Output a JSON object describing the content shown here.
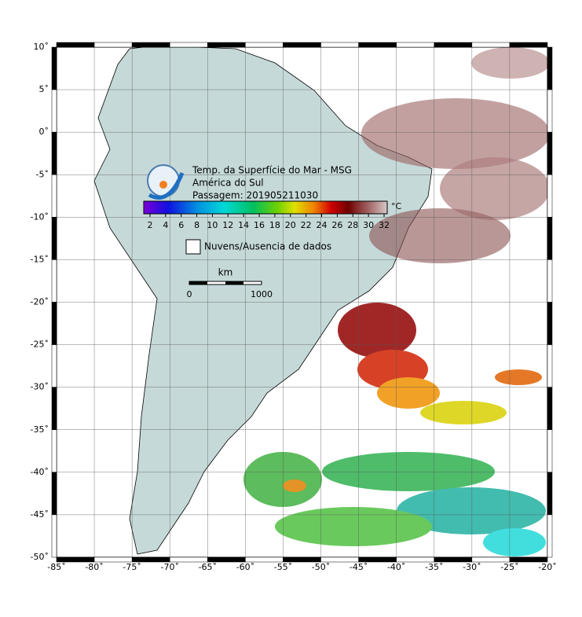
{
  "map": {
    "title_lines": [
      "Temp. da Superfície do Mar - MSG",
      "América do Sul",
      "Passagem: 201905211030"
    ],
    "lon_lim": [
      -85,
      -20
    ],
    "lat_lim": [
      -50,
      10
    ],
    "lon_ticks": [
      {
        "value": -85,
        "label": "-85˚"
      },
      {
        "value": -80,
        "label": "-80˚"
      },
      {
        "value": -75,
        "label": "-75˚"
      },
      {
        "value": -70,
        "label": "-70˚"
      },
      {
        "value": -65,
        "label": "-65˚"
      },
      {
        "value": -60,
        "label": "-60˚"
      },
      {
        "value": -55,
        "label": "-55˚"
      },
      {
        "value": -50,
        "label": "-50˚"
      },
      {
        "value": -45,
        "label": "-45˚"
      },
      {
        "value": -40,
        "label": "-40˚"
      },
      {
        "value": -35,
        "label": "-35˚"
      },
      {
        "value": -30,
        "label": "-30˚"
      },
      {
        "value": -25,
        "label": "-25˚"
      },
      {
        "value": -20,
        "label": "-20˚"
      }
    ],
    "lat_ticks": [
      {
        "value": 10,
        "label": "10˚"
      },
      {
        "value": 5,
        "label": "5˚"
      },
      {
        "value": 0,
        "label": "0˚"
      },
      {
        "value": -5,
        "label": "-5˚"
      },
      {
        "value": -10,
        "label": "-10˚"
      },
      {
        "value": -15,
        "label": "-15˚"
      },
      {
        "value": -20,
        "label": "-20˚"
      },
      {
        "value": -25,
        "label": "-25˚"
      },
      {
        "value": -30,
        "label": "-30˚"
      },
      {
        "value": -35,
        "label": "-35˚"
      },
      {
        "value": -40,
        "label": "-40˚"
      },
      {
        "value": -45,
        "label": "-45˚"
      },
      {
        "value": -50,
        "label": "-50˚"
      }
    ],
    "colorbar": {
      "lim": [
        1.2,
        32.4
      ],
      "ticks": [
        2,
        4,
        6,
        8,
        10,
        12,
        14,
        16,
        18,
        20,
        22,
        24,
        26,
        28,
        30,
        32
      ],
      "unit": "°C"
    },
    "legend": "Nuvens/Ausencia de dados",
    "scale_bar": {
      "unit": "km",
      "labels": [
        "0",
        "1000"
      ]
    }
  }
}
